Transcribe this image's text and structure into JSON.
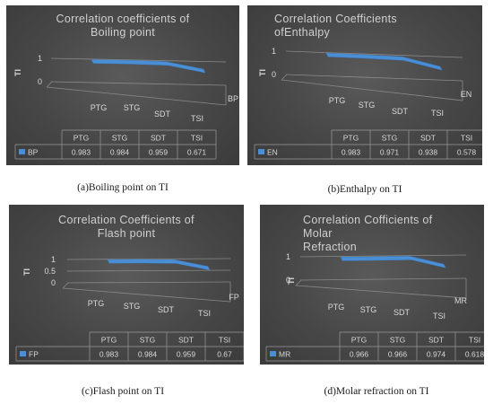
{
  "chart_data": [
    {
      "type": "line",
      "title": "Correlation  coefficients of\nBoiling point",
      "ylabel": "TI",
      "categories": [
        "PTG",
        "STG",
        "SDT",
        "TSI"
      ],
      "yticks": [
        "0",
        "1"
      ],
      "ylim": [
        0,
        1
      ],
      "series": [
        {
          "name": "BP",
          "values": [
            0.983,
            0.984,
            0.959,
            0.671
          ]
        }
      ],
      "table": {
        "headers": [
          "PTG",
          "STG",
          "SDT",
          "TSI"
        ],
        "values": [
          "0.983",
          "0.984",
          "0.959",
          "0.671"
        ]
      },
      "caption": "(a)Boiling point on TI",
      "series_color": "#4a8fd6"
    },
    {
      "type": "line",
      "title": "Correlation  Coefficients\nofEnthalpy",
      "ylabel": "TI",
      "categories": [
        "PTG",
        "STG",
        "SDT",
        "TSI"
      ],
      "yticks": [
        "0",
        "1"
      ],
      "ylim": [
        0,
        1
      ],
      "series": [
        {
          "name": "EN",
          "values": [
            0.983,
            0.971,
            0.938,
            0.578
          ]
        }
      ],
      "table": {
        "headers": [
          "PTG",
          "STG",
          "SDT",
          "TSI"
        ],
        "values": [
          "0.983",
          "0.971",
          "0.938",
          "0.578"
        ]
      },
      "caption": "(b)Enthalpy on TI",
      "series_color": "#4a8fd6"
    },
    {
      "type": "line",
      "title": "Correlation  Coefficients  of\nFlash point",
      "ylabel": "TI",
      "categories": [
        "PTG",
        "STG",
        "SDT",
        "TSI"
      ],
      "yticks": [
        "0",
        "0.5",
        "1"
      ],
      "ylim": [
        0,
        1
      ],
      "series": [
        {
          "name": "FP",
          "values": [
            0.983,
            0.984,
            0.959,
            0.67
          ]
        }
      ],
      "table": {
        "headers": [
          "PTG",
          "STG",
          "SDT",
          "TSI"
        ],
        "values": [
          "0.983",
          "0.984",
          "0.959",
          "0.67"
        ]
      },
      "caption": "(c)Flash point on TI",
      "series_color": "#4a8fd6"
    },
    {
      "type": "line",
      "title": "Correlation  Cofficients  of\nMolar\nRefraction",
      "ylabel": "TI",
      "categories": [
        "PTG",
        "STG",
        "SDT",
        "TSI"
      ],
      "yticks": [
        "0",
        "1"
      ],
      "ylim": [
        0,
        1
      ],
      "series": [
        {
          "name": "MR",
          "values": [
            0.966,
            0.966,
            0.974,
            0.618
          ]
        }
      ],
      "table": {
        "headers": [
          "PTG",
          "STG",
          "SDT",
          "TSI"
        ],
        "values": [
          "0.966",
          "0.966",
          "0.974",
          "0.618"
        ]
      },
      "caption": "(d)Molar refraction on TI",
      "series_color": "#4a8fd6"
    }
  ]
}
